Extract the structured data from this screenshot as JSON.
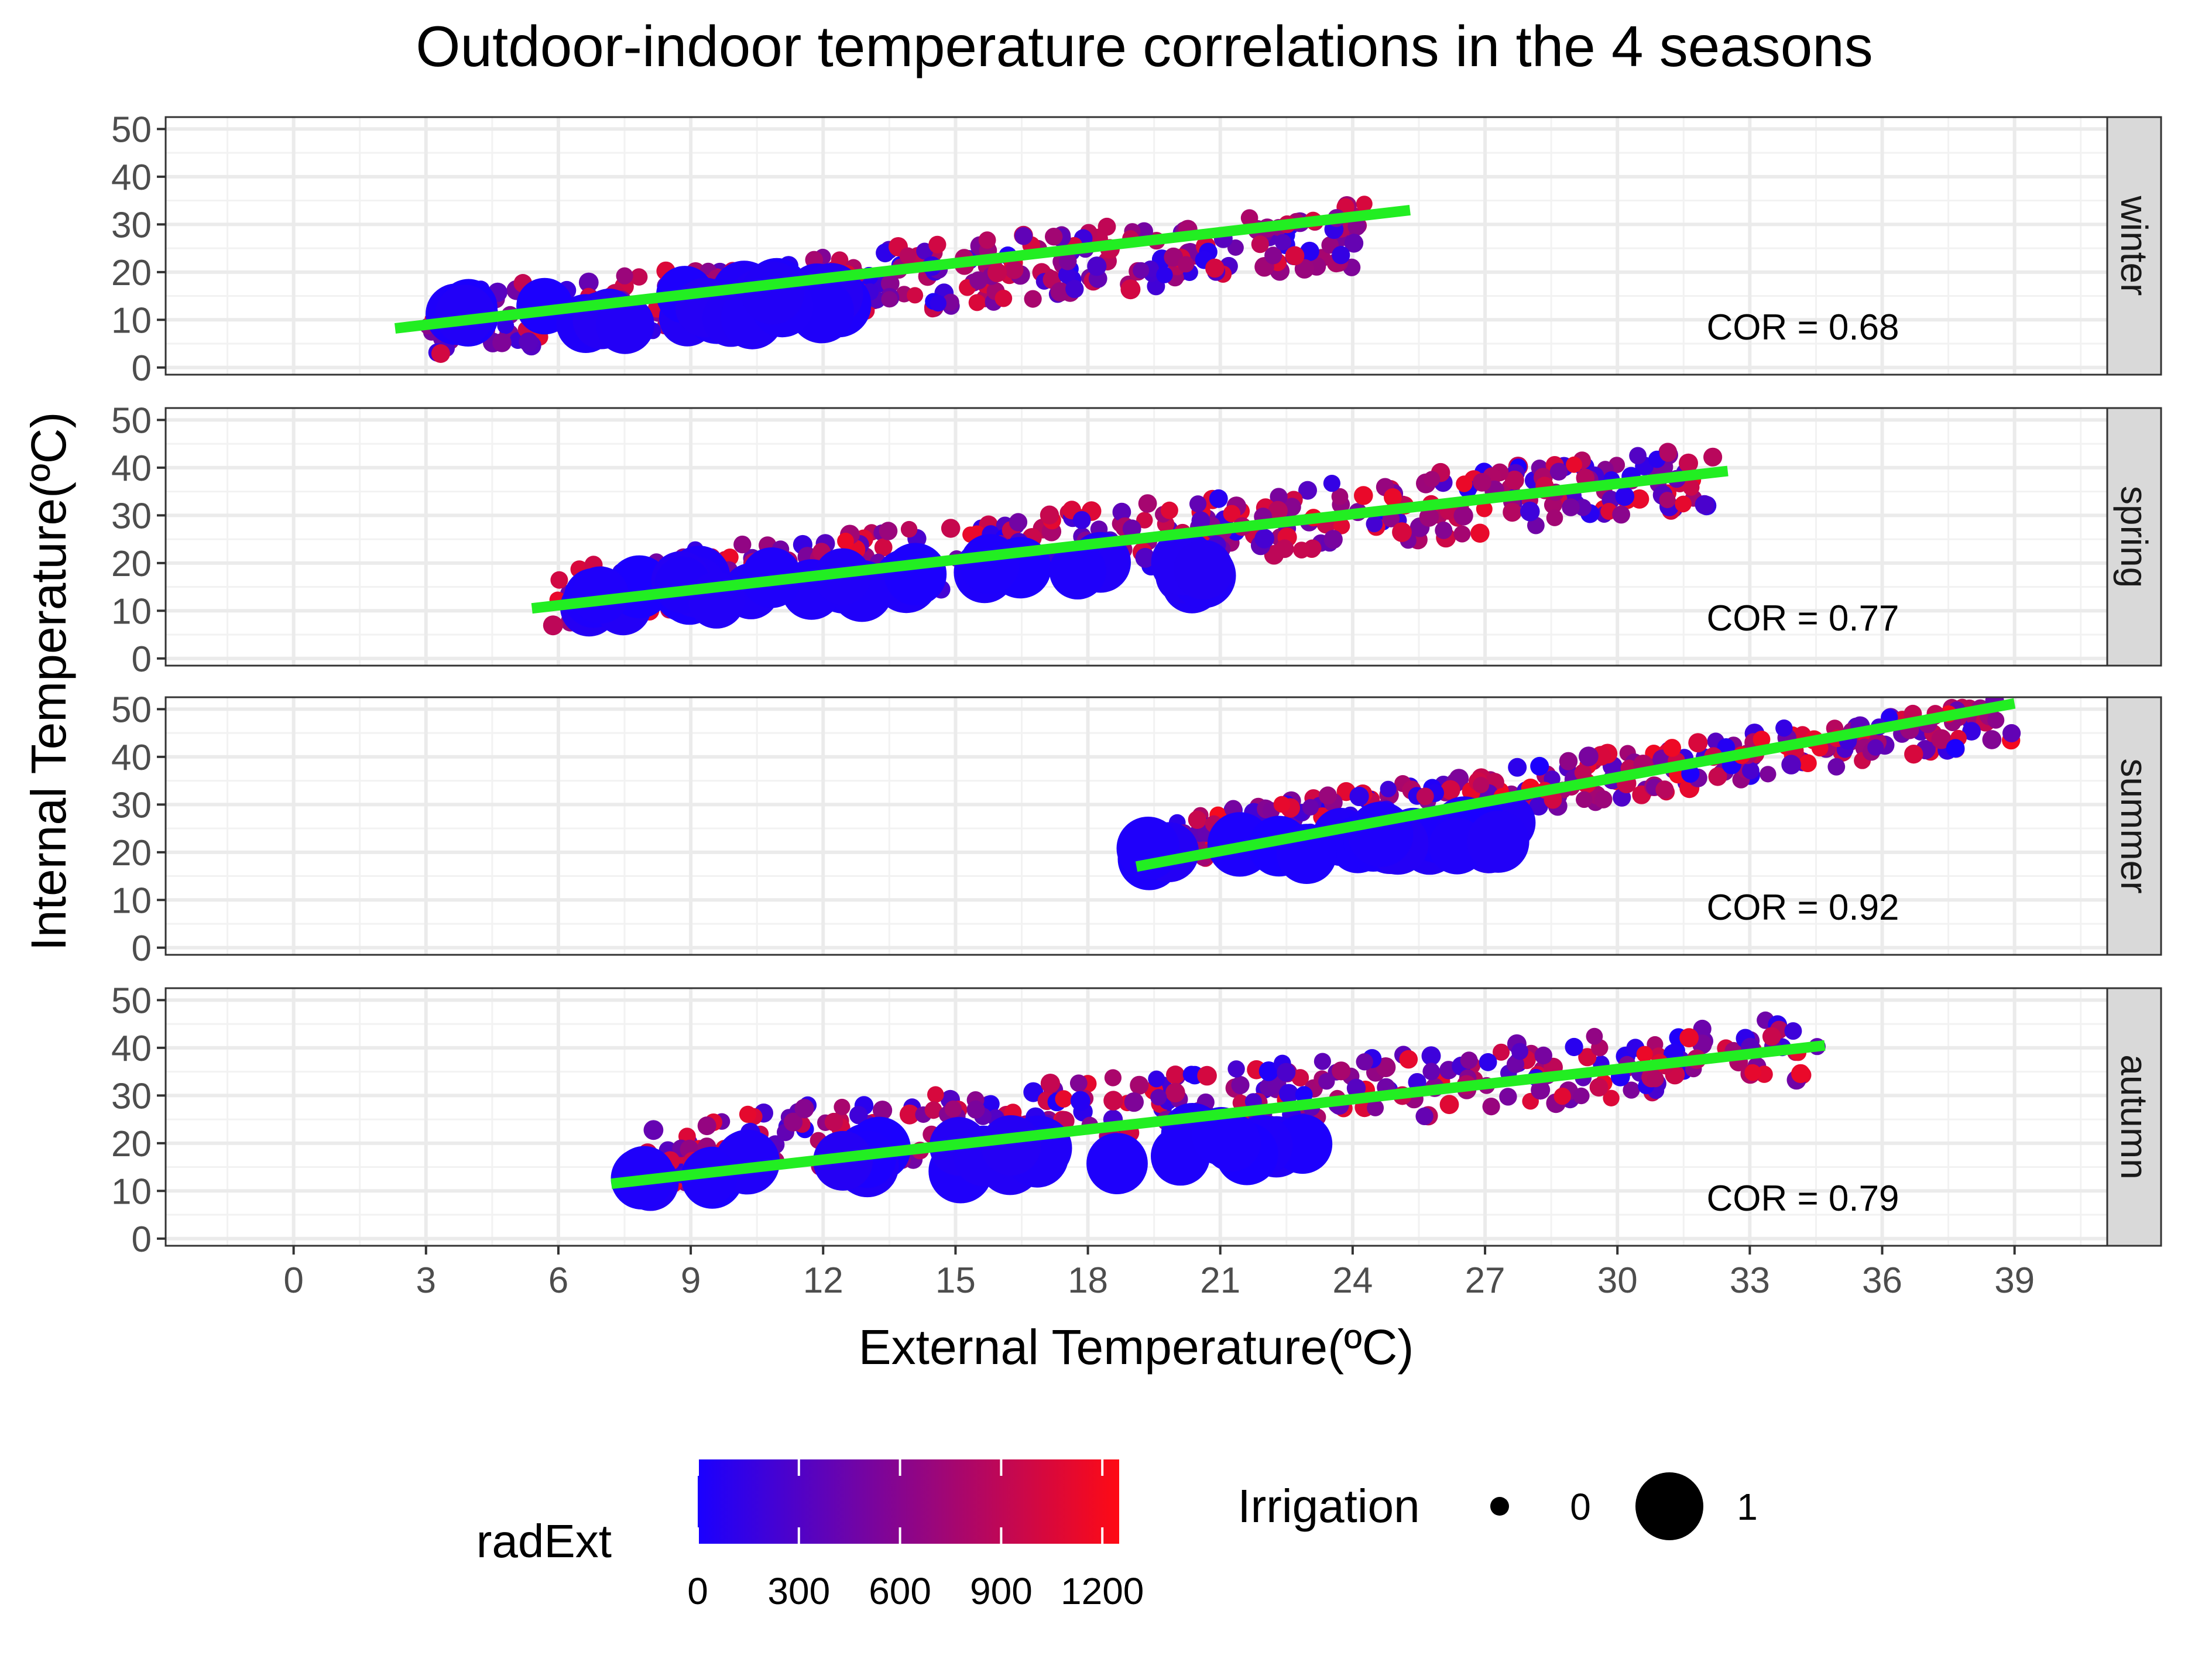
{
  "chart_data": {
    "type": "scatter",
    "title": "Outdoor-indoor temperature correlations in the 4 seasons",
    "xlabel": "External Temperature(ºC)",
    "ylabel": "Internal Temperature(ºC)",
    "xlim": [
      -2.9,
      41.1
    ],
    "ylim": [
      -1.5,
      52.5
    ],
    "x_ticks": [
      0,
      3,
      6,
      9,
      12,
      15,
      18,
      21,
      24,
      27,
      30,
      33,
      36,
      39
    ],
    "y_ticks": [
      0,
      10,
      20,
      30,
      40,
      50
    ],
    "grid": true,
    "fit_line_color": "#22ee22",
    "color_scale": {
      "title": "radExt",
      "low_color": "#1a00ff",
      "high_color": "#ff0a14",
      "min": 0,
      "max": 1250,
      "ticks": [
        0,
        300,
        600,
        900,
        1200
      ]
    },
    "size_legend": {
      "title": "Irrigation",
      "levels": [
        {
          "label": "0",
          "value": 0
        },
        {
          "label": "1",
          "value": 1
        }
      ]
    },
    "panels": [
      {
        "strip": "winter",
        "annotation": "COR = 0.68",
        "fit": {
          "x": [
            2.3,
            25.3
          ],
          "y": [
            8.2,
            33.0
          ]
        },
        "clouds": [
          {
            "x": [
              3,
              24.5
            ],
            "y_mid": [
              9,
              28
            ],
            "spread": 7,
            "irrigation": 0,
            "n": 320,
            "rad_low": 0,
            "rad_high": 1100
          },
          {
            "x": [
              2.8,
              12.5
            ],
            "y_mid": [
              10,
              14
            ],
            "spread": 3,
            "irrigation": 1,
            "n": 26,
            "rad_low": 0,
            "rad_high": 60
          }
        ]
      },
      {
        "strip": "spring",
        "annotation": "COR = 0.77",
        "fit": {
          "x": [
            5.4,
            32.5
          ],
          "y": [
            10.5,
            39.3
          ]
        },
        "clouds": [
          {
            "x": [
              5.8,
              32.3
            ],
            "y_mid": [
              13,
              38
            ],
            "spread": 7,
            "irrigation": 0,
            "n": 360,
            "rad_low": 0,
            "rad_high": 1150
          },
          {
            "x": [
              6.5,
              21
            ],
            "y_mid": [
              13,
              19
            ],
            "spread": 3,
            "irrigation": 1,
            "n": 30,
            "rad_low": 0,
            "rad_high": 60
          }
        ]
      },
      {
        "strip": "summer",
        "annotation": "COR = 0.92",
        "fit": {
          "x": [
            19.1,
            39.0
          ],
          "y": [
            17.0,
            51.2
          ]
        },
        "clouds": [
          {
            "x": [
              19.5,
              39
            ],
            "y_mid": [
              22,
              48
            ],
            "spread": 5,
            "irrigation": 0,
            "n": 300,
            "rad_low": 0,
            "rad_high": 1200
          },
          {
            "x": [
              19.3,
              27.5
            ],
            "y_mid": [
              20,
              24
            ],
            "spread": 2.5,
            "irrigation": 1,
            "n": 24,
            "rad_low": 0,
            "rad_high": 60
          }
        ]
      },
      {
        "strip": "autumn",
        "annotation": "COR = 0.79",
        "fit": {
          "x": [
            7.2,
            34.7
          ],
          "y": [
            11.5,
            40.5
          ]
        },
        "clouds": [
          {
            "x": [
              8,
              34.6
            ],
            "y_mid": [
              18,
              40
            ],
            "spread": 7,
            "irrigation": 0,
            "n": 330,
            "rad_low": 0,
            "rad_high": 1150
          },
          {
            "x": [
              7.8,
              23
            ],
            "y_mid": [
              14,
              20
            ],
            "spread": 3,
            "irrigation": 1,
            "n": 28,
            "rad_low": 0,
            "rad_high": 60
          }
        ]
      }
    ]
  }
}
